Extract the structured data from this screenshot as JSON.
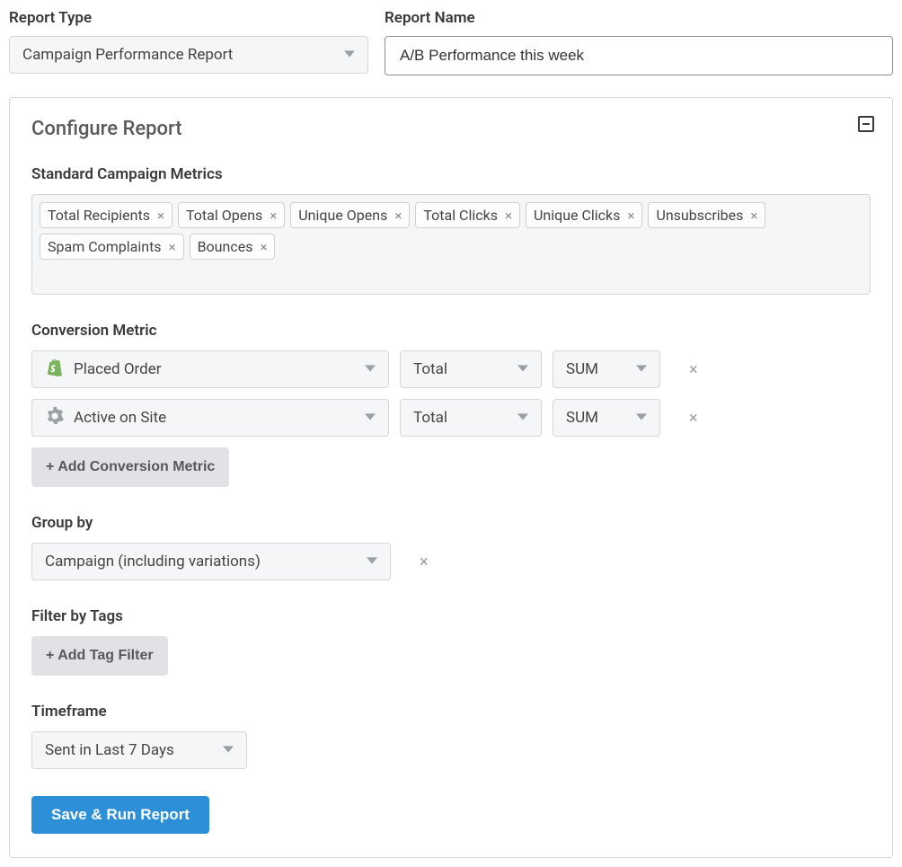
{
  "top": {
    "report_type_label": "Report Type",
    "report_type_value": "Campaign Performance Report",
    "report_name_label": "Report Name",
    "report_name_value": "A/B Performance this week"
  },
  "panel": {
    "title": "Configure Report"
  },
  "metrics": {
    "label": "Standard Campaign Metrics",
    "tags": [
      "Total Recipients",
      "Total Opens",
      "Unique Opens",
      "Total Clicks",
      "Unique Clicks",
      "Unsubscribes",
      "Spam Complaints",
      "Bounces"
    ]
  },
  "conversion": {
    "label": "Conversion Metric",
    "rows": [
      {
        "icon": "shopify",
        "metric": "Placed Order",
        "agg1": "Total",
        "agg2": "SUM"
      },
      {
        "icon": "gear",
        "metric": "Active on Site",
        "agg1": "Total",
        "agg2": "SUM"
      }
    ],
    "add_label": "+ Add Conversion Metric"
  },
  "group": {
    "label": "Group by",
    "value": "Campaign (including variations)"
  },
  "filter": {
    "label": "Filter by Tags",
    "add_label": "+ Add Tag Filter"
  },
  "timeframe": {
    "label": "Timeframe",
    "value": "Sent in Last 7 Days"
  },
  "actions": {
    "primary": "Save & Run Report"
  },
  "style": {
    "colors": {
      "panel_border": "#d6d6d6",
      "select_bg": "#f5f6f8",
      "tag_bg": "#fdfdfd",
      "tag_border": "#d0d0d0",
      "gray_btn_bg": "#e0e2e5",
      "gray_btn_text": "#55585c",
      "primary_btn_bg": "#2d8fd8",
      "primary_btn_text": "#ffffff",
      "text_input_border": "#8f8f8f",
      "label_text": "#3a3a3a",
      "body_bg": "#ffffff",
      "caret": "#9aa0a6",
      "shopify_green": "#7ab55c"
    },
    "font_sizes": {
      "label": 17,
      "panel_title": 22,
      "tag": 16,
      "button": 16
    },
    "radii": {
      "panel": 4,
      "select": 4,
      "tag": 4,
      "button": 4
    }
  }
}
